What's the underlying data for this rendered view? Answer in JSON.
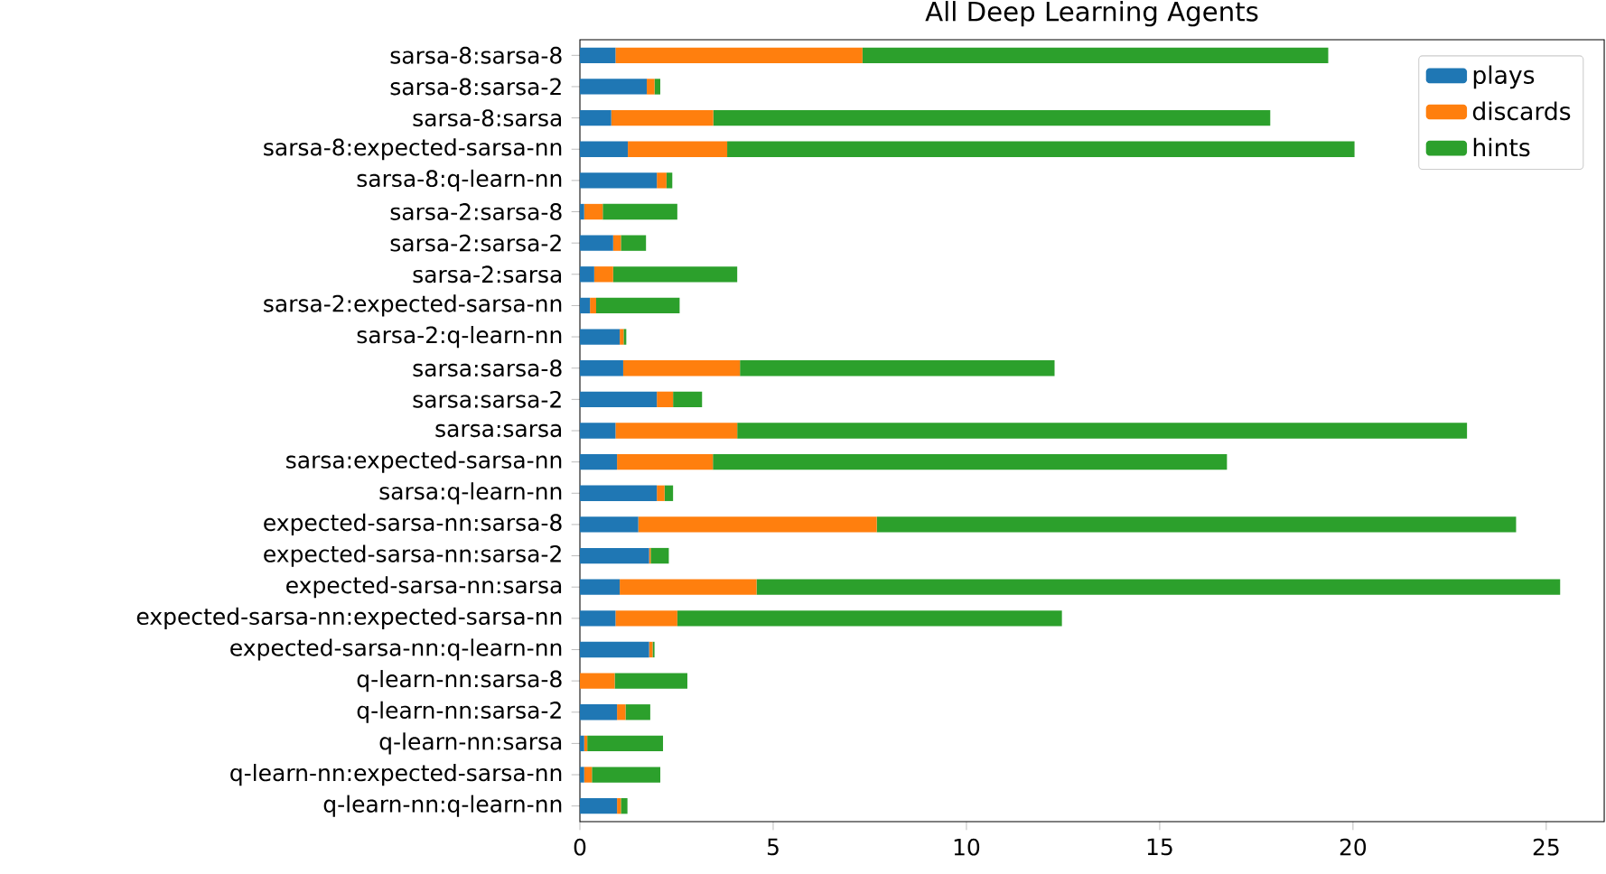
{
  "chart_data": {
    "type": "bar",
    "orientation": "horizontal",
    "stacked": true,
    "title": "All Deep Learning Agents",
    "categories": [
      "sarsa-8:sarsa-8",
      "sarsa-8:sarsa-2",
      "sarsa-8:sarsa",
      "sarsa-8:expected-sarsa-nn",
      "sarsa-8:q-learn-nn",
      "sarsa-2:sarsa-8",
      "sarsa-2:sarsa-2",
      "sarsa-2:sarsa",
      "sarsa-2:expected-sarsa-nn",
      "sarsa-2:q-learn-nn",
      "sarsa:sarsa-8",
      "sarsa:sarsa-2",
      "sarsa:sarsa",
      "sarsa:expected-sarsa-nn",
      "sarsa:q-learn-nn",
      "expected-sarsa-nn:sarsa-8",
      "expected-sarsa-nn:sarsa-2",
      "expected-sarsa-nn:sarsa",
      "expected-sarsa-nn:expected-sarsa-nn",
      "expected-sarsa-nn:q-learn-nn",
      "q-learn-nn:sarsa-8",
      "q-learn-nn:sarsa-2",
      "q-learn-nn:sarsa",
      "q-learn-nn:expected-sarsa-nn",
      "q-learn-nn:q-learn-nn"
    ],
    "series": [
      {
        "name": "plays",
        "color": "#1f77b4",
        "values": [
          0.92,
          1.73,
          0.81,
          1.24,
          1.99,
          0.11,
          0.86,
          0.37,
          0.26,
          1.03,
          1.12,
          1.99,
          0.92,
          0.96,
          1.99,
          1.51,
          1.79,
          1.03,
          0.92,
          1.79,
          0,
          0.96,
          0.11,
          0.11,
          0.96
        ]
      },
      {
        "name": "discards",
        "color": "#ff7f0e",
        "values": [
          6.39,
          0.2,
          2.64,
          2.57,
          0.25,
          0.48,
          0.2,
          0.49,
          0.16,
          0.1,
          3.02,
          0.42,
          3.15,
          2.48,
          0.2,
          6.17,
          0.04,
          3.54,
          1.6,
          0.09,
          0.9,
          0.22,
          0.08,
          0.2,
          0.1
        ]
      },
      {
        "name": "hints",
        "color": "#2ca02c",
        "values": [
          12.05,
          0.15,
          14.41,
          16.23,
          0.15,
          1.93,
          0.65,
          3.21,
          2.16,
          0.07,
          8.14,
          0.75,
          18.88,
          13.3,
          0.22,
          16.54,
          0.47,
          20.79,
          9.95,
          0.05,
          1.88,
          0.64,
          1.96,
          1.77,
          0.17
        ]
      }
    ],
    "xlim": [
      0,
      26.5
    ],
    "xticks": [
      0,
      5,
      10,
      15,
      20,
      25
    ],
    "legend": "top right"
  }
}
